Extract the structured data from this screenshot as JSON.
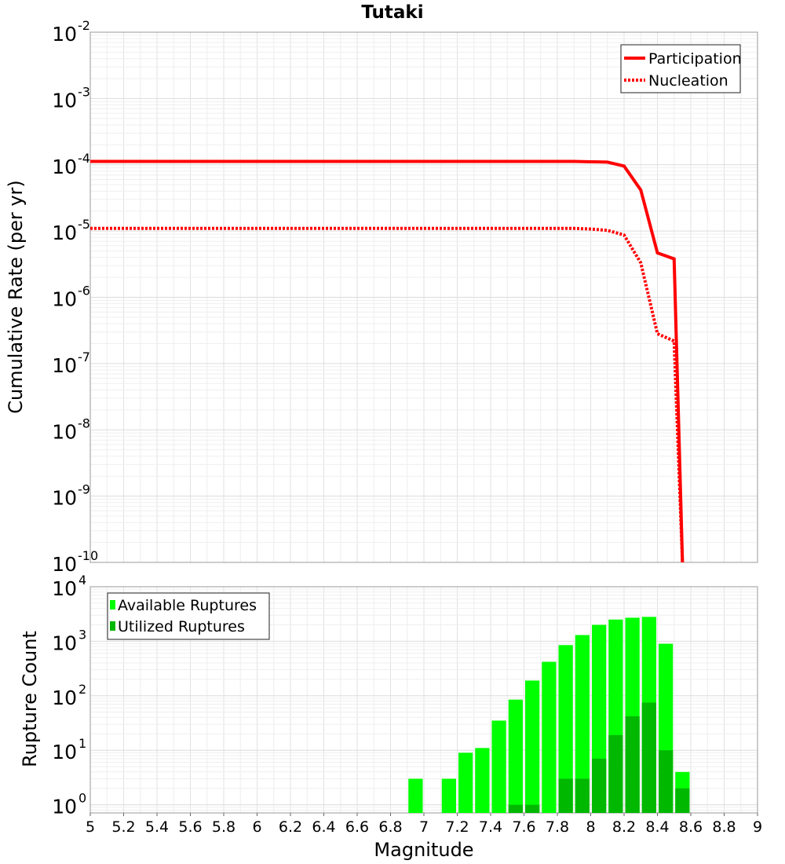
{
  "chart_data": [
    {
      "type": "line",
      "title": "Tutaki",
      "xlabel": "",
      "ylabel": "Cumulative Rate (per yr)",
      "xlim": [
        5,
        9
      ],
      "ylim_log10": [
        -10,
        -2
      ],
      "yscale": "log",
      "y_tick_exponents": [
        "-10",
        "-9",
        "-8",
        "-7",
        "-6",
        "-5",
        "-4",
        "-3",
        "-2"
      ],
      "grid": true,
      "legend": {
        "position": "top-right",
        "entries": [
          "Participation",
          "Nucleation"
        ]
      },
      "series": [
        {
          "name": "Participation",
          "style": "solid",
          "color": "#ff0000",
          "x": [
            5.0,
            7.9,
            8.0,
            8.1,
            8.2,
            8.3,
            8.4,
            8.5,
            8.55
          ],
          "y_log10": [
            -3.95,
            -3.95,
            -3.955,
            -3.96,
            -4.02,
            -4.38,
            -5.33,
            -5.42,
            -10.0
          ]
        },
        {
          "name": "Nucleation",
          "style": "dotted",
          "color": "#ff0000",
          "x": [
            5.0,
            7.9,
            8.0,
            8.1,
            8.2,
            8.3,
            8.4,
            8.5,
            8.55
          ],
          "y_log10": [
            -4.96,
            -4.96,
            -4.97,
            -4.99,
            -5.06,
            -5.48,
            -6.55,
            -6.66,
            -10.0
          ]
        }
      ]
    },
    {
      "type": "bar",
      "title": "",
      "xlabel": "Magnitude",
      "ylabel": "Rupture Count",
      "xlim": [
        5,
        9
      ],
      "ylim_log10": [
        -0.15,
        4
      ],
      "yscale": "log",
      "x_tick_labels": [
        "5",
        "5.2",
        "5.4",
        "5.6",
        "5.8",
        "6",
        "6.2",
        "6.4",
        "6.6",
        "6.8",
        "7",
        "7.2",
        "7.4",
        "7.6",
        "7.8",
        "8",
        "8.2",
        "8.4",
        "8.6",
        "8.8",
        "9"
      ],
      "y_tick_exponents": [
        "0",
        "1",
        "2",
        "3",
        "4"
      ],
      "grid": true,
      "legend": {
        "position": "top-left",
        "entries": [
          "Available Ruptures",
          "Utilized Ruptures"
        ]
      },
      "bin_width": 0.1,
      "series": [
        {
          "name": "Available Ruptures",
          "color": "#00ff00",
          "x": [
            6.95,
            7.15,
            7.25,
            7.35,
            7.45,
            7.55,
            7.65,
            7.75,
            7.85,
            7.95,
            8.05,
            8.15,
            8.25,
            8.35,
            8.45,
            8.55
          ],
          "values": [
            3,
            3,
            9,
            11,
            35,
            85,
            190,
            420,
            850,
            1300,
            2000,
            2500,
            2700,
            2800,
            900,
            4
          ]
        },
        {
          "name": "Utilized Ruptures",
          "color": "#00b800",
          "x": [
            7.55,
            7.65,
            7.85,
            7.95,
            8.05,
            8.15,
            8.25,
            8.35,
            8.45,
            8.55
          ],
          "values": [
            1,
            1,
            3,
            3,
            7,
            19,
            42,
            75,
            10,
            2
          ]
        }
      ]
    }
  ]
}
